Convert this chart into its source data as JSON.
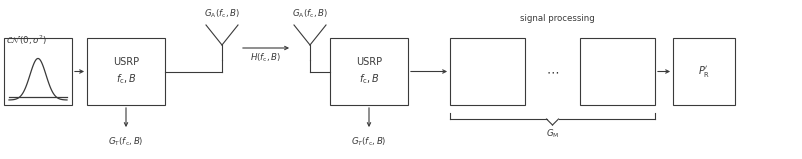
{
  "bg_color": "#ffffff",
  "text_color": "#3a3a3a",
  "box_edge_color": "#3a3a3a",
  "figsize": [
    8.02,
    1.59
  ],
  "dpi": 100,
  "cn_label": "$\\mathcal{CN}(0, \\sigma^2)$",
  "usrp_tx_label": "USRP\n$f_{\\mathrm{c}}, B$",
  "usrp_rx_label": "USRP\n$f_{\\mathrm{c}}, B$",
  "gt_tx_label": "$G_{\\mathrm{T}}(f_{\\mathrm{c}}, B)$",
  "gt_rx_label": "$G_{T}(f_{\\mathrm{c}}, B)$",
  "ga_tx_label": "$G_{\\mathrm{A}}(f_{\\mathrm{c}}, B)$",
  "ga_rx_label": "$G_{\\mathrm{A}}(f_{\\mathrm{c}}, B)$",
  "channel_label": "$H(f_{\\mathrm{c}}, B)$",
  "gm_label": "$G_{\\mathrm{M}}$",
  "signal_proc_label": "signal processing",
  "pr_label": "$P^{\\prime}_{\\mathrm{R}}$",
  "dots_label": "$\\cdots$"
}
